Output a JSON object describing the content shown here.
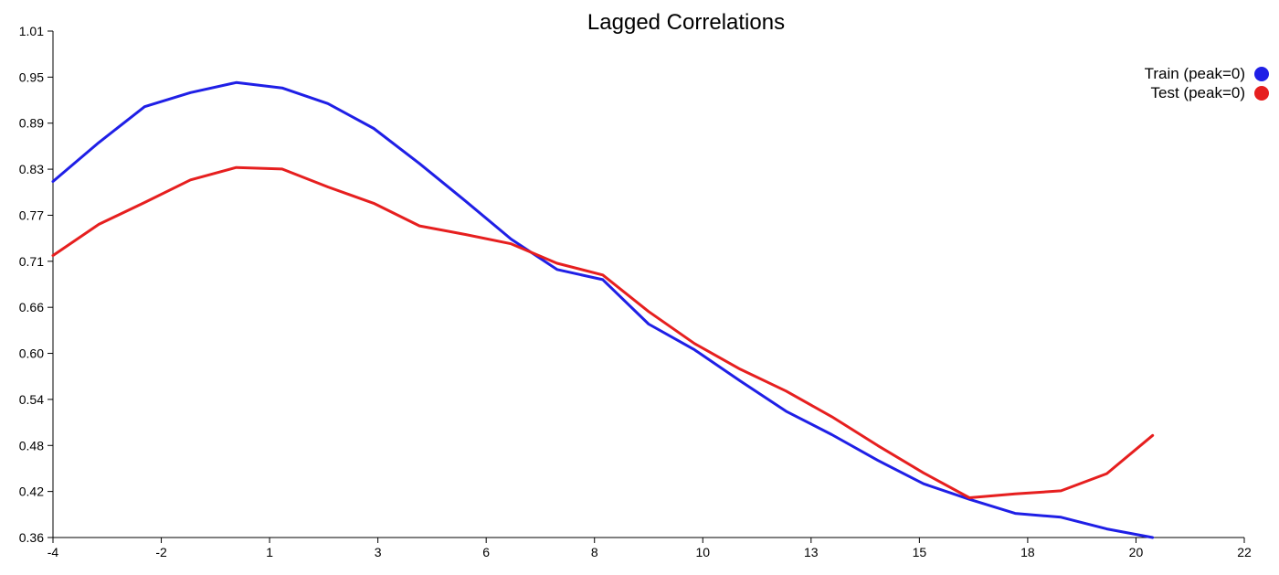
{
  "chart_data": {
    "type": "line",
    "title": "Lagged Correlations",
    "xlabel": "",
    "ylabel": "",
    "xlim": [
      -4,
      22
    ],
    "ylim": [
      0.36,
      1.01
    ],
    "x_ticks": [
      -4,
      -2,
      1,
      3,
      6,
      8,
      10,
      13,
      15,
      18,
      20,
      22
    ],
    "x_tick_labels": [
      "-4",
      "-2",
      "1",
      "3",
      "6",
      "8",
      "10",
      "13",
      "15",
      "18",
      "20",
      "22"
    ],
    "y_ticks": [
      0.36,
      0.42,
      0.48,
      0.54,
      0.6,
      0.66,
      0.71,
      0.77,
      0.83,
      0.89,
      0.95,
      1.01
    ],
    "y_tick_labels": [
      "0.36",
      "0.42",
      "0.48",
      "0.54",
      "0.60",
      "0.66",
      "0.71",
      "0.77",
      "0.83",
      "0.89",
      "0.95",
      "1.01"
    ],
    "grid": false,
    "legend_position": "top-right",
    "x": [
      -4,
      -3,
      -2,
      -1,
      0,
      1,
      2,
      3,
      4,
      5,
      6,
      7,
      8,
      9,
      10,
      11,
      12,
      13,
      14,
      15,
      16,
      17,
      18,
      19,
      20
    ],
    "series": [
      {
        "name": "Train (peak=0)",
        "color": "#1f1fe6",
        "values": [
          0.817,
          0.867,
          0.913,
          0.931,
          0.944,
          0.937,
          0.917,
          0.885,
          0.84,
          0.792,
          0.743,
          0.704,
          0.691,
          0.634,
          0.601,
          0.561,
          0.522,
          0.492,
          0.459,
          0.429,
          0.409,
          0.391,
          0.386,
          0.371,
          0.36
        ]
      },
      {
        "name": "Test (peak=0)",
        "color": "#e61f1f",
        "values": [
          0.722,
          0.762,
          0.79,
          0.819,
          0.835,
          0.833,
          0.81,
          0.789,
          0.76,
          0.749,
          0.737,
          0.712,
          0.697,
          0.65,
          0.609,
          0.576,
          0.548,
          0.515,
          0.478,
          0.443,
          0.411,
          0.416,
          0.42,
          0.442,
          0.491
        ]
      }
    ]
  }
}
